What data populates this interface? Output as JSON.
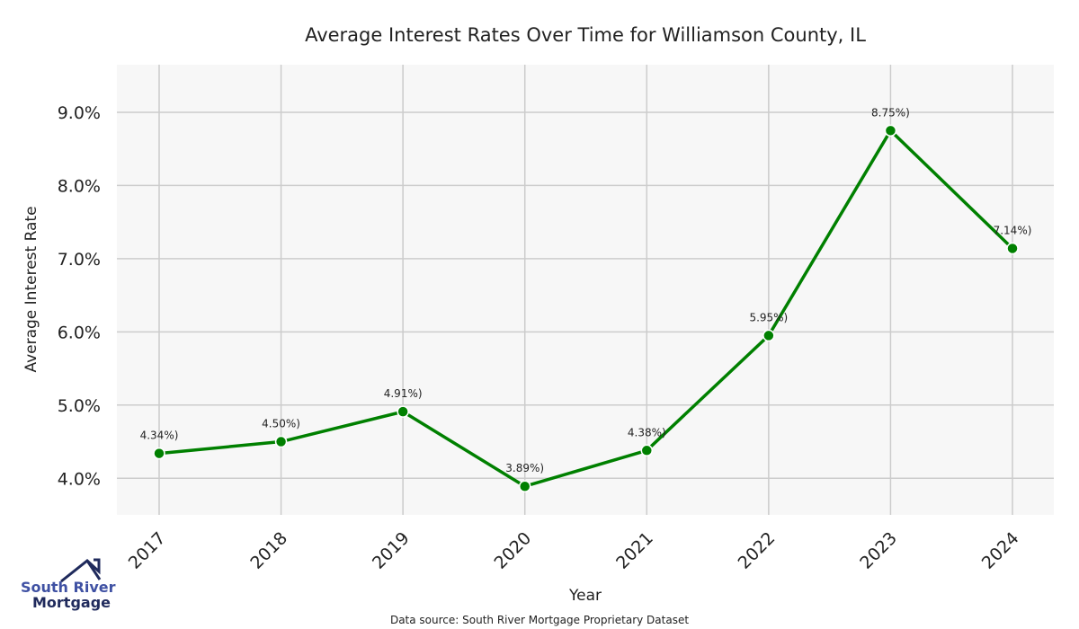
{
  "chart_data": {
    "type": "line",
    "title": "Average Interest Rates Over Time for Williamson County, IL",
    "xlabel": "Year",
    "ylabel": "Average Interest Rate",
    "x": [
      "2017",
      "2018",
      "2019",
      "2020",
      "2021",
      "2022",
      "2023",
      "2024"
    ],
    "values": [
      4.34,
      4.5,
      4.91,
      3.89,
      4.38,
      5.95,
      8.75,
      7.14
    ],
    "data_labels": [
      "4.34%)",
      "4.50%)",
      "4.91%)",
      "3.89%)",
      "4.38%)",
      "5.95%)",
      "8.75%)",
      "7.14%)"
    ],
    "yticks": [
      4.0,
      5.0,
      6.0,
      7.0,
      8.0,
      9.0
    ],
    "ytick_labels": [
      "4.0%",
      "5.0%",
      "6.0%",
      "7.0%",
      "8.0%",
      "9.0%"
    ],
    "ylim": [
      3.5,
      9.65
    ],
    "grid": true,
    "line_color": "#008000",
    "background": "#f7f7f7",
    "source": "Data source: South River Mortgage Proprietary Dataset"
  },
  "logo": {
    "line1": "South River",
    "line2": "Mortgage",
    "color1": "#3f51a3",
    "color2": "#1f2a5c"
  }
}
